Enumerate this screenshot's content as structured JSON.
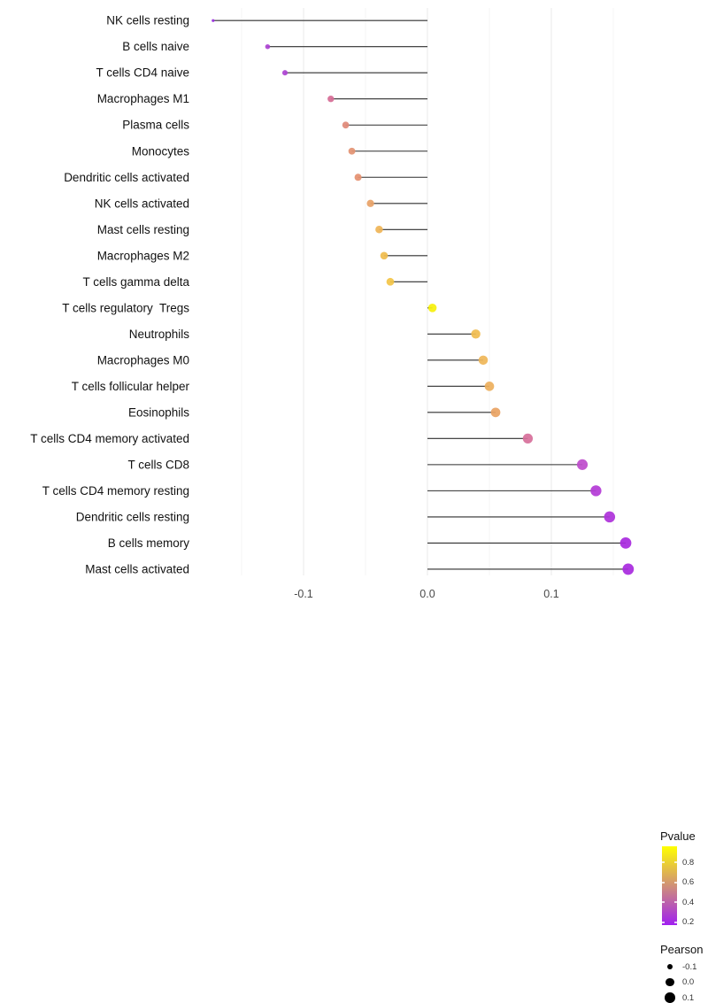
{
  "chart_data": {
    "type": "scatter",
    "variant": "horizontal-lollipop",
    "title": "",
    "xlabel": "",
    "ylabel": "",
    "xlim": [
      -0.19,
      0.178
    ],
    "x_major_ticks": [
      -0.1,
      0.0,
      0.1
    ],
    "x_tick_labels": [
      "-0.1",
      "0.0",
      "0.1"
    ],
    "x_minor_gridlines": [
      -0.15,
      -0.05,
      0.05,
      0.15
    ],
    "grid": "vertical-only",
    "legend_position": "right",
    "categories": [
      "NK cells resting",
      "B cells naive",
      "T cells CD4 naive",
      "Macrophages M1",
      "Plasma cells",
      "Monocytes",
      "Dendritic cells activated",
      "NK cells activated",
      "Mast cells resting",
      "Macrophages M2",
      "T cells gamma delta",
      "T cells regulatory  Tregs",
      "Neutrophils",
      "Macrophages M0",
      "T cells follicular helper",
      "Eosinophils",
      "T cells CD4 memory activated",
      "T cells CD8",
      "T cells CD4 memory resting",
      "Dendritic cells resting",
      "B cells memory",
      "Mast cells activated"
    ],
    "series": [
      {
        "name": "Pearson",
        "values": [
          -0.173,
          -0.129,
          -0.115,
          -0.078,
          -0.066,
          -0.061,
          -0.056,
          -0.046,
          -0.039,
          -0.035,
          -0.03,
          0.004,
          0.039,
          0.045,
          0.05,
          0.055,
          0.081,
          0.125,
          0.136,
          0.147,
          0.16,
          0.162
        ]
      },
      {
        "name": "Pvalue (approx, color-encoded)",
        "values": [
          0.22,
          0.27,
          0.27,
          0.46,
          0.55,
          0.58,
          0.59,
          0.63,
          0.69,
          0.72,
          0.74,
          0.95,
          0.72,
          0.69,
          0.67,
          0.63,
          0.46,
          0.3,
          0.25,
          0.23,
          0.21,
          0.21
        ]
      }
    ],
    "point_colors": [
      "#9B30E0",
      "#AC44D2",
      "#AD45D3",
      "#D66D96",
      "#E08A7A",
      "#E39373",
      "#E59171",
      "#E8A368",
      "#EFB557",
      "#F0BC4F",
      "#F3C548",
      "#F6F00D",
      "#F0BC50",
      "#EFB759",
      "#EDAF5E",
      "#EAA464",
      "#D7709B",
      "#BE4CCC",
      "#B43BD6",
      "#AE33DA",
      "#A92BDF",
      "#A92BDF"
    ]
  },
  "legend": {
    "pvalue": {
      "title": "Pvalue",
      "tick_labels": [
        "0.8",
        "0.6",
        "0.4",
        "0.2"
      ],
      "tick_values": [
        0.8,
        0.6,
        0.4,
        0.2
      ],
      "range": [
        0.17,
        0.965
      ],
      "gradient_top_color": "#FFFF00",
      "gradient_bottom_color": "#A020F0"
    },
    "pearson": {
      "title": "Pearson",
      "items": [
        {
          "label": "-0.1",
          "value": -0.1
        },
        {
          "label": "0.0",
          "value": 0.0
        },
        {
          "label": "0.1",
          "value": 0.1
        }
      ],
      "dot_color": "#000000"
    }
  },
  "colors": {
    "background": "#FFFFFF",
    "stem": "#2E2E2E",
    "axis_text": "#4A4A4A",
    "label_text": "#111111",
    "grid_major": "#ECECEC",
    "grid_minor": "#F6F6F6"
  }
}
